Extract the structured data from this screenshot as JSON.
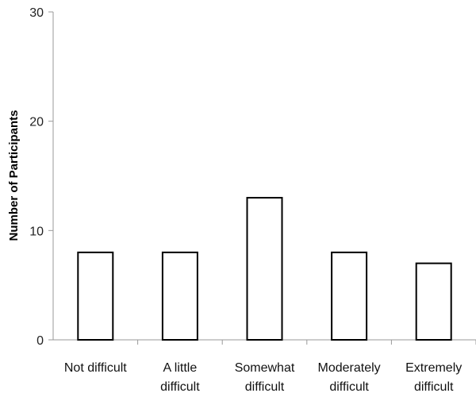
{
  "chart_data": {
    "type": "bar",
    "title": "",
    "xlabel": "",
    "ylabel": "Number of Participants",
    "categories": [
      [
        "Not difficult"
      ],
      [
        "A little",
        "difficult"
      ],
      [
        "Somewhat",
        "difficult"
      ],
      [
        "Moderately",
        "difficult"
      ],
      [
        "Extremely",
        "difficult"
      ]
    ],
    "values": [
      8,
      8,
      13,
      8,
      7
    ],
    "ylim": [
      0,
      30
    ],
    "yticks": [
      0,
      10,
      20,
      30
    ],
    "grid": false,
    "legend": "none",
    "colors": {
      "bar_fill": "#ffffff",
      "bar_stroke": "#000000",
      "axis": "#999999"
    }
  }
}
